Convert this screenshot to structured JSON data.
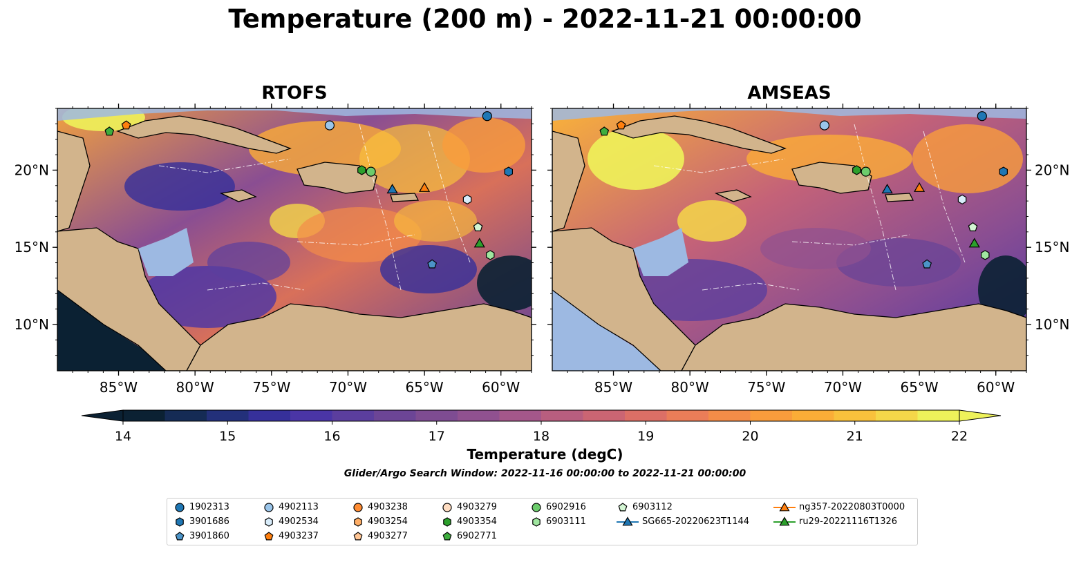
{
  "title": "Temperature (200 m) - 2022-11-21 00:00:00",
  "panels": [
    {
      "title": "RTOFS"
    },
    {
      "title": "AMSEAS"
    }
  ],
  "map": {
    "lon_range": [
      -89,
      -58
    ],
    "lat_range": [
      7,
      24
    ],
    "lon_ticks": [
      "85°W",
      "80°W",
      "75°W",
      "70°W",
      "65°W",
      "60°W"
    ],
    "lon_values": [
      -85,
      -80,
      -75,
      -70,
      -65,
      -60
    ],
    "lat_ticks": [
      "20°N",
      "15°N",
      "10°N"
    ],
    "lat_values": [
      20,
      15,
      10
    ],
    "colors": {
      "land": "#d2b48c",
      "shallow": "#9db9e2",
      "deep_cold": "#0b2133"
    }
  },
  "colorbar": {
    "label": "Temperature (degC)",
    "min": 14,
    "max": 22,
    "ticks": [
      "14",
      "15",
      "16",
      "17",
      "18",
      "19",
      "20",
      "21",
      "22"
    ],
    "colors": [
      "#0b2133",
      "#152b55",
      "#23307a",
      "#36309a",
      "#4a35a6",
      "#5b3e9e",
      "#6c4596",
      "#7e4c92",
      "#905190",
      "#a4578a",
      "#b85e7f",
      "#cb6573",
      "#dc6f66",
      "#ea7d58",
      "#f38c48",
      "#f99c3c",
      "#fbad37",
      "#f9c13c",
      "#f5d749",
      "#eef25a"
    ]
  },
  "search_window": "Glider/Argo Search Window: 2022-11-16 00:00:00 to 2022-11-21 00:00:00",
  "legend": [
    {
      "label": "1902313",
      "marker": "circle",
      "color": "#1f77b4"
    },
    {
      "label": "3901686",
      "marker": "hexagon",
      "color": "#1f77b4"
    },
    {
      "label": "3901860",
      "marker": "pentagon",
      "color": "#4c94c8"
    },
    {
      "label": "4902113",
      "marker": "circle",
      "color": "#9ac5ea"
    },
    {
      "label": "4902534",
      "marker": "hexagon",
      "color": "#d8ecfa"
    },
    {
      "label": "4903237",
      "marker": "pentagon",
      "color": "#ff7f0e"
    },
    {
      "label": "4903238",
      "marker": "circle",
      "color": "#ff8c33"
    },
    {
      "label": "4903254",
      "marker": "hexagon",
      "color": "#ffae66"
    },
    {
      "label": "4903277",
      "marker": "pentagon",
      "color": "#ffc594"
    },
    {
      "label": "4903279",
      "marker": "circle",
      "color": "#ffddc2"
    },
    {
      "label": "4903354",
      "marker": "hexagon",
      "color": "#2ca02c"
    },
    {
      "label": "6902771",
      "marker": "pentagon",
      "color": "#3eae3e"
    },
    {
      "label": "6902916",
      "marker": "circle",
      "color": "#6ccc6c"
    },
    {
      "label": "6903111",
      "marker": "hexagon",
      "color": "#a0e6a0"
    },
    {
      "label": "6903112",
      "marker": "pentagon",
      "color": "#d3f5d3"
    },
    {
      "label": "SG665-20220623T1144",
      "marker": "triangle-line",
      "color": "#1f77b4"
    },
    {
      "label": "ng357-20220803T0000",
      "marker": "triangle-line",
      "color": "#ff7f0e"
    },
    {
      "label": "ru29-20221116T1326",
      "marker": "triangle-line",
      "color": "#2ca02c"
    }
  ],
  "markers": [
    {
      "id": "1902313",
      "lon": -60.9,
      "lat": 23.5
    },
    {
      "id": "3901686",
      "lon": -59.5,
      "lat": 19.9
    },
    {
      "id": "3901860",
      "lon": -64.5,
      "lat": 13.9
    },
    {
      "id": "4902113",
      "lon": -71.2,
      "lat": 22.9
    },
    {
      "id": "4902534",
      "lon": -62.2,
      "lat": 18.1
    },
    {
      "id": "4903237",
      "lon": -84.5,
      "lat": 22.9
    },
    {
      "id": "6902916",
      "lon": -68.5,
      "lat": 19.9
    },
    {
      "id": "4903354",
      "lon": -69.1,
      "lat": 20.0
    },
    {
      "id": "6902771",
      "lon": -85.6,
      "lat": 22.5
    },
    {
      "id": "6903111",
      "lon": -60.7,
      "lat": 14.5
    },
    {
      "id": "6903112",
      "lon": -61.5,
      "lat": 16.3
    },
    {
      "id": "SG665-20220623T1144",
      "lon": -67.1,
      "lat": 18.7
    },
    {
      "id": "ng357-20220803T0000",
      "lon": -65.0,
      "lat": 18.8
    },
    {
      "id": "ru29-20221116T1326",
      "lon": -61.4,
      "lat": 15.2
    }
  ]
}
